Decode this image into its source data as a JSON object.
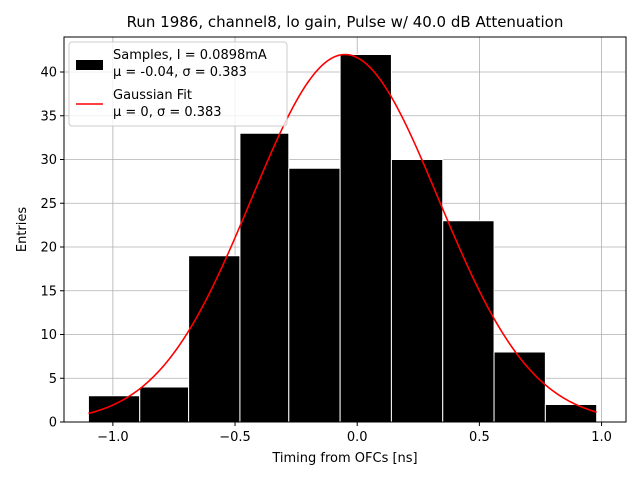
{
  "chart_data": {
    "type": "bar",
    "title": "Run 1986, channel8, lo gain, Pulse w/ 40.0 dB Attenuation",
    "xlabel": "Timing from OFCs [ns]",
    "ylabel": "Entries",
    "xlim": [
      -1.2,
      1.1
    ],
    "ylim": [
      0,
      44
    ],
    "xticks": [
      -1.0,
      -0.5,
      0.0,
      0.5,
      1.0
    ],
    "xtick_labels": [
      "−1.0",
      "−0.5",
      "0.0",
      "0.5",
      "1.0"
    ],
    "yticks": [
      0,
      5,
      10,
      15,
      20,
      25,
      30,
      35,
      40
    ],
    "ytick_labels": [
      "0",
      "5",
      "10",
      "15",
      "20",
      "25",
      "30",
      "35",
      "40"
    ],
    "grid": true,
    "legend_position": "top-left",
    "histogram": {
      "name": "Samples, I = 0.0898mA",
      "stats": "μ = -0.04, σ = 0.383",
      "color": "#000000",
      "edge_color": "#ffffff",
      "bin_edges": [
        -1.1,
        -0.89,
        -0.69,
        -0.48,
        -0.28,
        -0.07,
        0.14,
        0.35,
        0.56,
        0.77,
        0.98
      ],
      "counts": [
        3,
        4,
        19,
        33,
        29,
        42,
        30,
        23,
        8,
        2
      ]
    },
    "fit": {
      "name": "Gaussian Fit",
      "stats": "μ = 0, σ = 0.383",
      "color": "#ff0000",
      "amplitude": 42,
      "mu": -0.05,
      "sigma": 0.383,
      "x_range": [
        -1.1,
        0.98
      ]
    }
  }
}
